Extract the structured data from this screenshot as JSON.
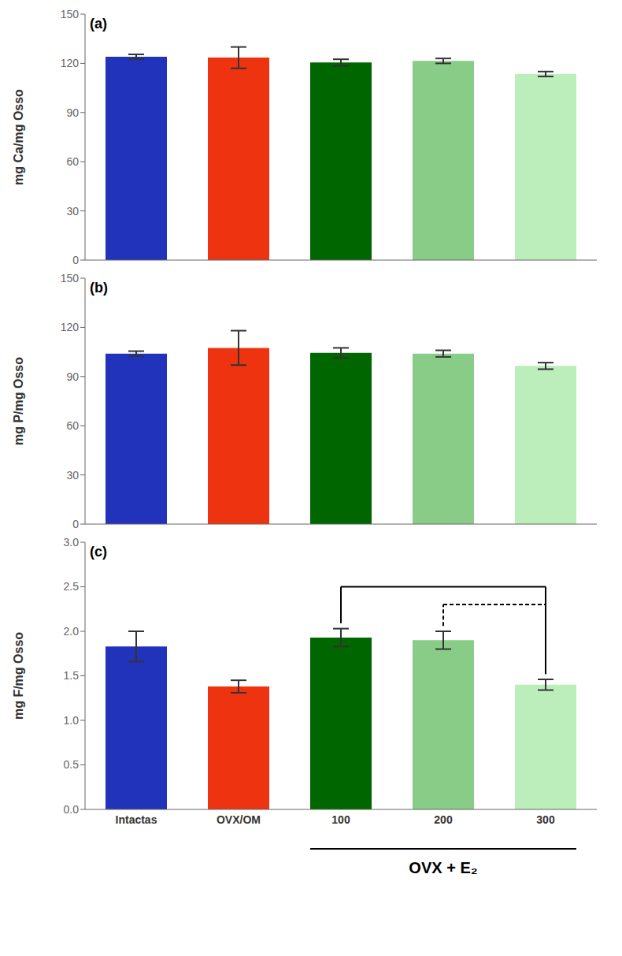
{
  "chart_data": [
    {
      "type": "bar",
      "title": "(a)",
      "categories": [
        "Intactas",
        "OVX/OM",
        "100",
        "200",
        "300"
      ],
      "values": [
        124.0,
        123.5,
        120.5,
        121.5,
        113.5
      ],
      "errors": [
        1.5,
        6.5,
        2.0,
        1.5,
        1.5
      ],
      "colors": [
        "#2233BB",
        "#EE3311",
        "#006600",
        "#88CC88",
        "#BBEEBB"
      ],
      "ylabel": "mg Ca/mg Osso",
      "ylim": [
        0,
        150
      ],
      "yticks": [
        0,
        30,
        60,
        90,
        120,
        150
      ],
      "tick_labels": "y"
    },
    {
      "type": "bar",
      "title": "(b)",
      "categories": [
        "Intactas",
        "OVX/OM",
        "100",
        "200",
        "300"
      ],
      "values": [
        104.0,
        107.5,
        104.5,
        104.0,
        96.5
      ],
      "errors": [
        1.5,
        10.5,
        3.0,
        2.0,
        2.0
      ],
      "colors": [
        "#2233BB",
        "#EE3311",
        "#006600",
        "#88CC88",
        "#BBEEBB"
      ],
      "ylabel": "mg P/mg Osso",
      "ylim": [
        0,
        150
      ],
      "yticks": [
        0,
        30,
        60,
        90,
        120,
        150
      ],
      "tick_labels": "y"
    },
    {
      "type": "bar",
      "title": "(c)",
      "categories": [
        "Intactas",
        "OVX/OM",
        "100",
        "200",
        "300"
      ],
      "values": [
        1.83,
        1.38,
        1.93,
        1.9,
        1.4
      ],
      "errors": [
        0.17,
        0.07,
        0.1,
        0.1,
        0.06
      ],
      "colors": [
        "#2233BB",
        "#EE3311",
        "#006600",
        "#88CC88",
        "#BBEEBB"
      ],
      "ylabel": "mg F/mg Osso",
      "ylim": [
        0,
        3.0
      ],
      "yticks": [
        {
          "value": 0,
          "label": "0.0"
        },
        0.5,
        {
          "value": 1,
          "label": "1.0"
        },
        1.5,
        {
          "value": 2,
          "label": "2.0"
        },
        2.5,
        {
          "value": 3,
          "label": "3.0"
        }
      ],
      "xlabel": "OVX + E₂",
      "xlabel_group": [
        "100",
        "200",
        "300"
      ],
      "brackets": [
        {
          "from": "100",
          "to": "300",
          "y": 2.5,
          "line_style": "solid"
        },
        {
          "from": "200",
          "to": "300",
          "y": 2.3,
          "line_style": "dashed"
        }
      ]
    }
  ]
}
